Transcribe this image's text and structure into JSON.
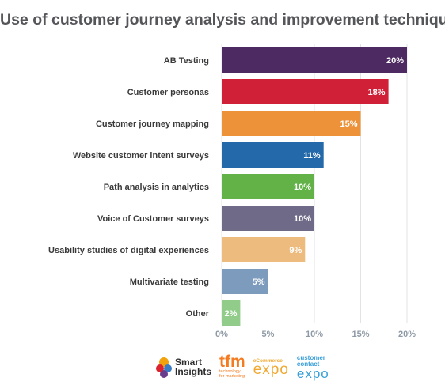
{
  "chart_data": {
    "type": "bar",
    "orientation": "horizontal",
    "title": "Use of customer journey analysis and improvement techniques",
    "categories": [
      "AB Testing",
      "Customer personas",
      "Customer journey mapping",
      "Website customer intent surveys",
      "Path analysis in analytics",
      "Voice of Customer surveys",
      "Usability studies of digital experiences",
      "Multivariate testing",
      "Other"
    ],
    "values": [
      20,
      18,
      15,
      11,
      10,
      10,
      9,
      5,
      2
    ],
    "data_labels": [
      "20%",
      "18%",
      "15%",
      "11%",
      "10%",
      "10%",
      "9%",
      "5%",
      "2%"
    ],
    "colors": [
      "#4e2a62",
      "#cf2038",
      "#ee923a",
      "#2469a9",
      "#62b248",
      "#6f6a88",
      "#eebb7e",
      "#7d9bbd",
      "#92cc8b"
    ],
    "xlim": [
      0,
      20
    ],
    "xticks": [
      0,
      5,
      10,
      15,
      20
    ],
    "xtick_labels": [
      "0%",
      "5%",
      "10%",
      "15%",
      "20%"
    ],
    "grid": true,
    "legend": "none"
  },
  "logos": {
    "smart_insights": {
      "line1": "Smart",
      "line2": "Insights"
    },
    "tfm": {
      "main": "tfm",
      "sub1": "technology",
      "sub2": "for marketing"
    },
    "ecommerce_expo": {
      "pre": "eCommerce",
      "main": "expo"
    },
    "customer_contact_expo": {
      "line1": "customer",
      "line2": "contact",
      "main": "expo"
    }
  }
}
